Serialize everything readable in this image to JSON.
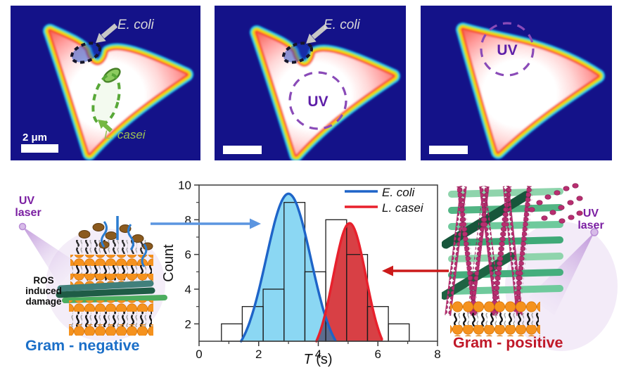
{
  "panels": {
    "panel1": {
      "ecoli_label": "E. coli",
      "lcasei_label": "L. casei",
      "scalebar_label": "2 μm"
    },
    "panel2": {
      "ecoli_label": "E. coli",
      "uv_label": "UV"
    },
    "panel3": {
      "uv_label": "UV"
    }
  },
  "chart_data": {
    "type": "histogram",
    "title": "",
    "xlabel": "T (s)",
    "ylabel": "Count",
    "xlim": [
      0,
      8
    ],
    "ylim": [
      1,
      10
    ],
    "xticks": [
      0,
      2,
      4,
      6,
      8
    ],
    "yticks": [
      2,
      4,
      6,
      8,
      10
    ],
    "grid": false,
    "bars": {
      "bin_edges": [
        0.75,
        1.45,
        2.15,
        2.85,
        3.55,
        4.25,
        4.95,
        5.65,
        6.35,
        7.05
      ],
      "counts": [
        2,
        3,
        4,
        9,
        5,
        8,
        6,
        3,
        2
      ],
      "outline_color": "#1c1c1c"
    },
    "series": [
      {
        "name": "E. coli",
        "shape": "gaussian",
        "center": 3.0,
        "peak": 9.5,
        "sigma": 0.75,
        "stroke": "#1e64c8",
        "fill": "#8bd7f3"
      },
      {
        "name": "L. casei",
        "shape": "gaussian",
        "center": 5.05,
        "peak": 7.8,
        "sigma": 0.55,
        "stroke": "#e8202c",
        "fill": "#d84045"
      }
    ],
    "overlap_fill": "#5c6c8e",
    "legend": [
      {
        "label": "E. coli",
        "color": "#1e64c8"
      },
      {
        "label": "L. casei",
        "color": "#e8202c"
      }
    ],
    "legend_position": "top-right"
  },
  "left_diagram": {
    "laser_line1": "UV",
    "laser_line2": "laser",
    "ros_line1": "ROS",
    "ros_line2": "induced",
    "ros_line3": "damage",
    "title": "Gram - negative",
    "title_color": "#1b6fc8"
  },
  "right_diagram": {
    "laser_line1": "UV",
    "laser_line2": "laser",
    "title": "Gram - positive",
    "title_color": "#c01828"
  },
  "colors": {
    "panel_background": "#141289",
    "blue_arrow": "#5b95e0",
    "red_arrow": "#cc1a1a",
    "uv_annotation": "#5e1fa8",
    "laser_text": "#7b1fa2"
  }
}
